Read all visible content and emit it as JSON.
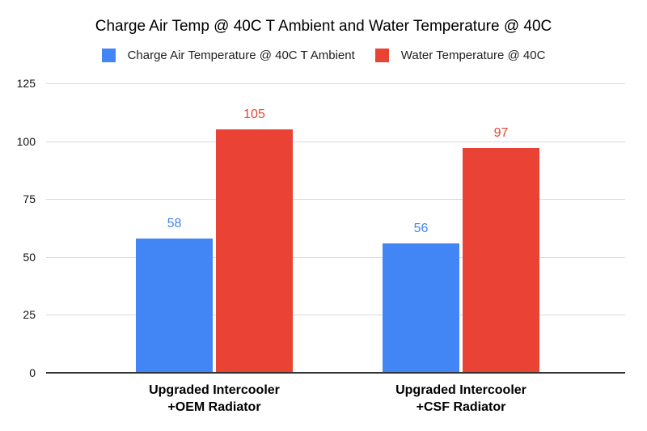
{
  "chart_data": {
    "type": "bar",
    "title": "Charge Air Temp @ 40C T Ambient and Water Temperature @ 40C",
    "categories": [
      {
        "label": "Upgraded Intercooler +OEM Radiator",
        "lines": [
          "Upgraded Intercooler",
          "+OEM Radiator"
        ]
      },
      {
        "label": "Upgraded Intercooler +CSF Radiator",
        "lines": [
          "Upgraded Intercooler",
          "+CSF Radiator"
        ]
      }
    ],
    "series": [
      {
        "name": "Charge Air Temperature @ 40C T Ambient",
        "color": "#4285F4",
        "values": [
          58,
          56
        ]
      },
      {
        "name": "Water Temperature @ 40C",
        "color": "#EA4335",
        "values": [
          105,
          97
        ]
      }
    ],
    "ylim": [
      0,
      125
    ],
    "yticks": [
      0,
      25,
      50,
      75,
      100,
      125
    ],
    "xlabel": "",
    "ylabel": "",
    "grid": true,
    "legend_position": "top",
    "value_labels_shown": true,
    "background_color": "#FFFFFF",
    "gridline_color": "#DADADA",
    "axis_line_color": "#333333"
  }
}
